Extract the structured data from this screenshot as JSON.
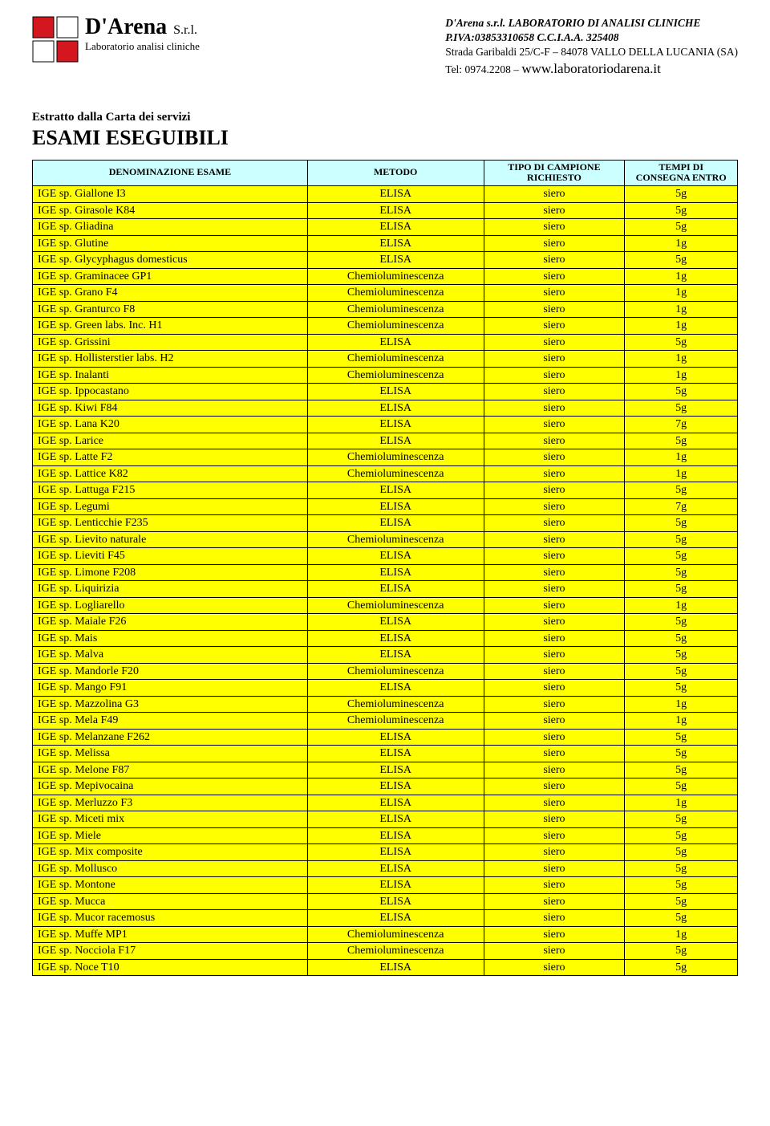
{
  "header": {
    "logo_name": "D'Arena",
    "logo_srl": "S.r.l.",
    "logo_sub": "Laboratorio analisi cliniche",
    "logo_colors": {
      "red": "#d4171e",
      "white": "#ffffff",
      "border": "#000000"
    }
  },
  "company": {
    "line1": "D'Arena s.r.l. LABORATORIO DI ANALISI CLINICHE",
    "line2": "P.IVA:03853310658  C.C.I.A.A. 325408",
    "line3": "Strada Garibaldi 25/C-F – 84078 VALLO DELLA LUCANIA (SA)",
    "tel_label": "Tel: 0974.2208 – ",
    "website": "www.laboratoriodarena.it"
  },
  "intro": {
    "line1": "Estratto dalla Carta dei servizi",
    "line2": "ESAMI ESEGUIBILI"
  },
  "table": {
    "columns": {
      "name": "DENOMINAZIONE ESAME",
      "method": "METODO",
      "sample": "TIPO DI CAMPIONE\nRICHIESTO",
      "time": "TEMPI DI\nCONSEGNA ENTRO"
    },
    "header_bg": "#ccffff",
    "row_bg": "#ffff00",
    "rows": [
      [
        "IGE sp. Giallone I3",
        "ELISA",
        "siero",
        "5g"
      ],
      [
        "IGE sp. Girasole K84",
        "ELISA",
        "siero",
        "5g"
      ],
      [
        "IGE sp. Gliadina",
        "ELISA",
        "siero",
        "5g"
      ],
      [
        "IGE sp. Glutine",
        "ELISA",
        "siero",
        "1g"
      ],
      [
        "IGE sp. Glycyphagus domesticus",
        "ELISA",
        "siero",
        "5g"
      ],
      [
        "IGE sp. Graminacee GP1",
        "Chemioluminescenza",
        "siero",
        "1g"
      ],
      [
        "IGE sp. Grano F4",
        "Chemioluminescenza",
        "siero",
        "1g"
      ],
      [
        "IGE sp. Granturco F8",
        "Chemioluminescenza",
        "siero",
        "1g"
      ],
      [
        "IGE sp. Green labs. Inc. H1",
        "Chemioluminescenza",
        "siero",
        "1g"
      ],
      [
        "IGE sp. Grissini",
        "ELISA",
        "siero",
        "5g"
      ],
      [
        "IGE sp. Hollisterstier labs. H2",
        "Chemioluminescenza",
        "siero",
        "1g"
      ],
      [
        "IGE sp. Inalanti",
        "Chemioluminescenza",
        "siero",
        "1g"
      ],
      [
        "IGE sp. Ippocastano",
        "ELISA",
        "siero",
        "5g"
      ],
      [
        "IGE sp. Kiwi F84",
        "ELISA",
        "siero",
        "5g"
      ],
      [
        "IGE sp. Lana K20",
        "ELISA",
        "siero",
        "7g"
      ],
      [
        "IGE sp. Larice",
        "ELISA",
        "siero",
        "5g"
      ],
      [
        "IGE sp. Latte F2",
        "Chemioluminescenza",
        "siero",
        "1g"
      ],
      [
        "IGE sp. Lattice K82",
        "Chemioluminescenza",
        "siero",
        "1g"
      ],
      [
        "IGE sp. Lattuga F215",
        "ELISA",
        "siero",
        "5g"
      ],
      [
        "IGE sp. Legumi",
        "ELISA",
        "siero",
        "7g"
      ],
      [
        "IGE sp. Lenticchie F235",
        "ELISA",
        "siero",
        "5g"
      ],
      [
        "IGE sp. Lievito naturale",
        "Chemioluminescenza",
        "siero",
        "5g"
      ],
      [
        "IGE sp. Lieviti F45",
        "ELISA",
        "siero",
        "5g"
      ],
      [
        "IGE sp. Limone F208",
        "ELISA",
        "siero",
        "5g"
      ],
      [
        "IGE sp. Liquirizia",
        "ELISA",
        "siero",
        "5g"
      ],
      [
        "IGE sp. Logliarello",
        "Chemioluminescenza",
        "siero",
        "1g"
      ],
      [
        "IGE sp. Maiale F26",
        "ELISA",
        "siero",
        "5g"
      ],
      [
        "IGE sp. Mais",
        "ELISA",
        "siero",
        "5g"
      ],
      [
        "IGE sp. Malva",
        "ELISA",
        "siero",
        "5g"
      ],
      [
        "IGE sp. Mandorle F20",
        "Chemioluminescenza",
        "siero",
        "5g"
      ],
      [
        "IGE sp. Mango F91",
        "ELISA",
        "siero",
        "5g"
      ],
      [
        "IGE sp. Mazzolina G3",
        "Chemioluminescenza",
        "siero",
        "1g"
      ],
      [
        "IGE sp. Mela  F49",
        "Chemioluminescenza",
        "siero",
        "1g"
      ],
      [
        "IGE sp. Melanzane F262",
        "ELISA",
        "siero",
        "5g"
      ],
      [
        "IGE sp. Melissa",
        "ELISA",
        "siero",
        "5g"
      ],
      [
        "IGE sp. Melone F87",
        "ELISA",
        "siero",
        "5g"
      ],
      [
        "IGE sp. Mepivocaina",
        "ELISA",
        "siero",
        "5g"
      ],
      [
        "IGE sp. Merluzzo F3",
        "ELISA",
        "siero",
        "1g"
      ],
      [
        "IGE sp. Miceti mix",
        "ELISA",
        "siero",
        "5g"
      ],
      [
        "IGE sp. Miele",
        "ELISA",
        "siero",
        "5g"
      ],
      [
        "IGE sp. Mix composite",
        "ELISA",
        "siero",
        "5g"
      ],
      [
        "IGE sp. Mollusco",
        "ELISA",
        "siero",
        "5g"
      ],
      [
        "IGE sp. Montone",
        "ELISA",
        "siero",
        "5g"
      ],
      [
        "IGE sp. Mucca",
        "ELISA",
        "siero",
        "5g"
      ],
      [
        "IGE sp. Mucor racemosus",
        "ELISA",
        "siero",
        "5g"
      ],
      [
        "IGE sp. Muffe MP1",
        "Chemioluminescenza",
        "siero",
        "1g"
      ],
      [
        "IGE sp. Nocciola F17",
        "Chemioluminescenza",
        "siero",
        "5g"
      ],
      [
        "IGE sp. Noce T10",
        "ELISA",
        "siero",
        "5g"
      ]
    ]
  }
}
